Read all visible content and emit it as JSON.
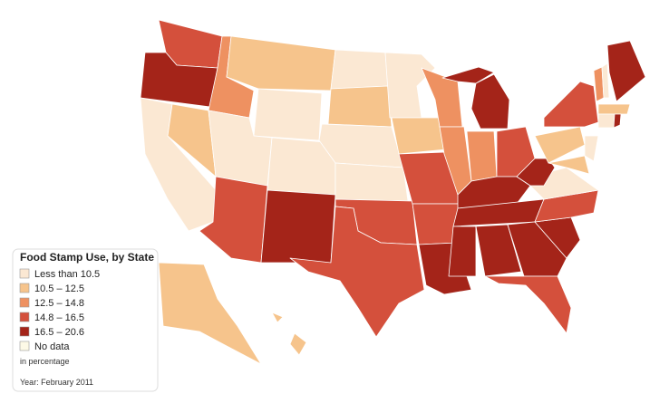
{
  "legend": {
    "title": "Food Stamp Use, by State",
    "items": [
      {
        "label": "Less than 10.5",
        "color": "#fbe8d3"
      },
      {
        "label": "10.5 – 12.5",
        "color": "#f6c48c"
      },
      {
        "label": "12.5 – 14.8",
        "color": "#ee9161"
      },
      {
        "label": "14.8 – 16.5",
        "color": "#d4503c"
      },
      {
        "label": "16.5 – 20.6",
        "color": "#a42419"
      },
      {
        "label": "No data",
        "color": "#fdf9e6"
      }
    ],
    "unit_note": "in percentage",
    "year_note": "Year: February 2011"
  },
  "region_classes": [
    3,
    4,
    0,
    1,
    2,
    1,
    0,
    0,
    3,
    0,
    4,
    0,
    1,
    0,
    0,
    3,
    3,
    0,
    1,
    3,
    3,
    4,
    2,
    2,
    4,
    4,
    2,
    3,
    4,
    4,
    4,
    4,
    4,
    3,
    4,
    3,
    0,
    4,
    1,
    3,
    1,
    0,
    4,
    2,
    0,
    1,
    0,
    4,
    1,
    1,
    1
  ]
}
